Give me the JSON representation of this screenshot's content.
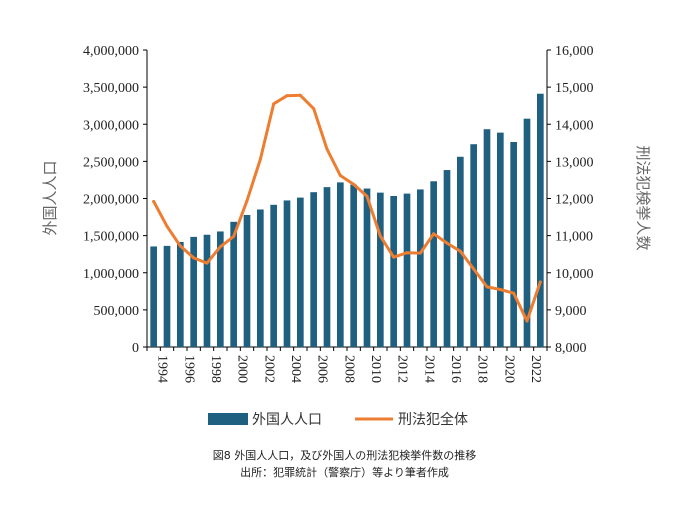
{
  "chart_data": {
    "type": "bar",
    "years": [
      1994,
      1995,
      1996,
      1997,
      1998,
      1999,
      2000,
      2001,
      2002,
      2003,
      2004,
      2005,
      2006,
      2007,
      2008,
      2009,
      2010,
      2011,
      2012,
      2013,
      2014,
      2015,
      2016,
      2017,
      2018,
      2019,
      2020,
      2021,
      2022,
      2023
    ],
    "x_tick_labels": [
      "1994",
      "1996",
      "1998",
      "2000",
      "2002",
      "2004",
      "2006",
      "2008",
      "2010",
      "2012",
      "2014",
      "2016",
      "2018",
      "2020",
      "2022"
    ],
    "series": [
      {
        "name": "外国人人口",
        "axis": "left",
        "kind": "bar",
        "color": "#1F5F7F",
        "values": [
          1354000,
          1362000,
          1415000,
          1483000,
          1512000,
          1556000,
          1686000,
          1778000,
          1852000,
          1915000,
          1974000,
          2012000,
          2085000,
          2153000,
          2217000,
          2186000,
          2134000,
          2079000,
          2034000,
          2066000,
          2122000,
          2232000,
          2383000,
          2562000,
          2731000,
          2933000,
          2887000,
          2761000,
          3075000,
          3411000
        ]
      },
      {
        "name": "刑法犯全体",
        "axis": "right",
        "kind": "line",
        "color": "#ED7D31",
        "values": [
          11920,
          11250,
          10720,
          10400,
          10260,
          10700,
          10980,
          11940,
          13050,
          14550,
          14770,
          14780,
          14420,
          13330,
          12620,
          12380,
          12060,
          10990,
          10420,
          10540,
          10530,
          11050,
          10800,
          10580,
          10100,
          9620,
          9550,
          9450,
          8700,
          9750
        ]
      }
    ],
    "left_axis": {
      "label": "外国人人口",
      "min": 0,
      "max": 4000000,
      "step": 500000,
      "tick_labels": [
        "0",
        "500,000",
        "1,000,000",
        "1,500,000",
        "2,000,000",
        "2,500,000",
        "3,000,000",
        "3,500,000",
        "4,000,000"
      ]
    },
    "right_axis": {
      "label": "刑法犯検挙人数",
      "min": 8000,
      "max": 16000,
      "step": 1000,
      "tick_labels": [
        "8,000",
        "9,000",
        "10,000",
        "11,000",
        "12,000",
        "13,000",
        "14,000",
        "15,000",
        "16,000"
      ]
    },
    "legend": {
      "placement": "bottom"
    },
    "grid": false
  },
  "caption": {
    "line1": "図8 外国人人口，及び外国人の刑法犯検挙件数の推移",
    "line2": "出所：犯罪統計（警察庁）等より筆者作成"
  }
}
